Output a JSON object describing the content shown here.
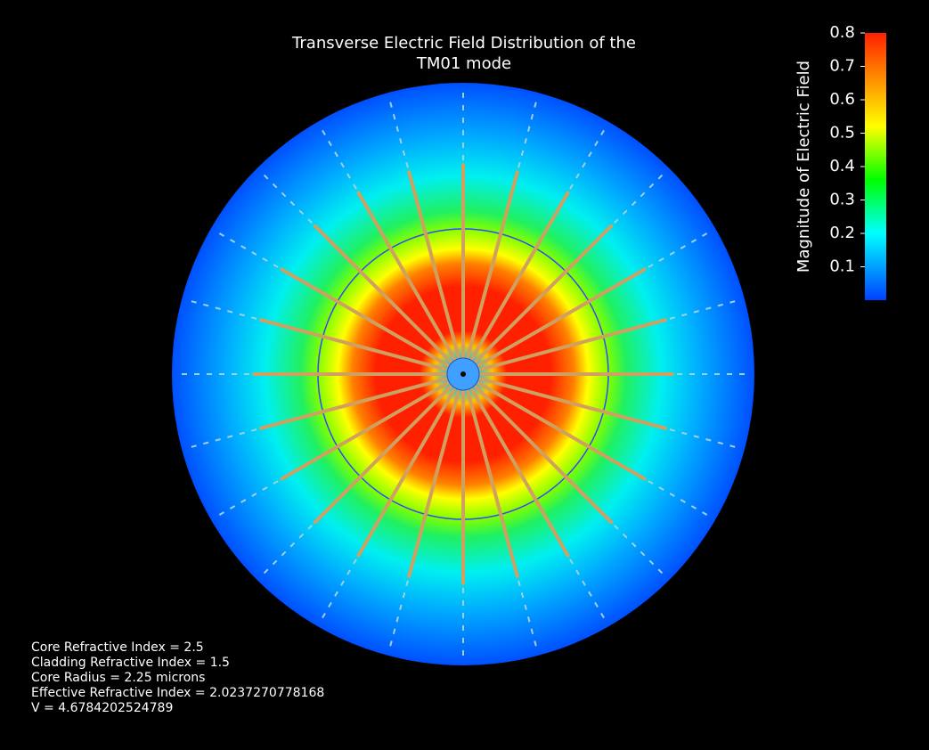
{
  "chart_data": {
    "type": "field",
    "title": [
      "Transverse Electric Field Distribution of the",
      "TM01 mode"
    ],
    "colorbar": {
      "label": "Magnitude of Electric Field",
      "lim": [
        0,
        0.8
      ],
      "ticks": [
        0.1,
        0.2,
        0.3,
        0.4,
        0.5,
        0.6,
        0.7,
        0.8
      ]
    },
    "annotations": [
      "Core Refractive Index = 2.5",
      "Cladding Refractive Index = 1.5",
      "Core Radius = 2.25 microns",
      "Effective Refractive Index = 2.0237270778168",
      "V = 4.6784202524789"
    ]
  }
}
